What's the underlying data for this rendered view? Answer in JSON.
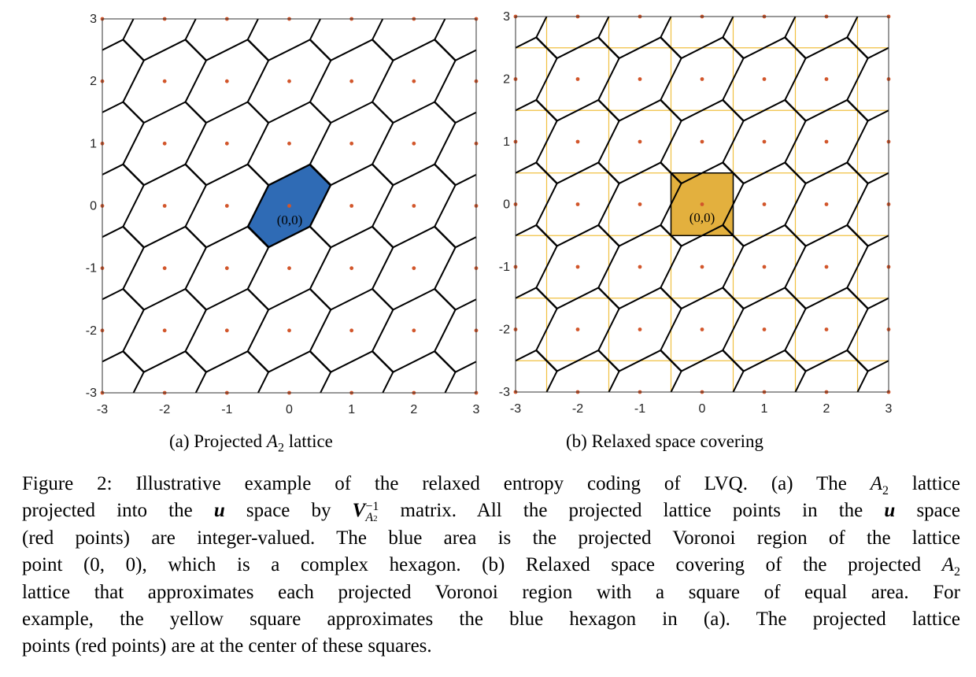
{
  "plot_a": {
    "origin_label": "(0,0)",
    "x_ticks": [
      "-3",
      "-2",
      "-1",
      "0",
      "1",
      "2",
      "3"
    ],
    "y_ticks": [
      "3",
      "2",
      "1",
      "0",
      "-1",
      "-2",
      "-3"
    ],
    "region_color": "#2f6bb5",
    "point_color": "#d2562b"
  },
  "plot_b": {
    "origin_label": "(0,0)",
    "x_ticks": [
      "-3",
      "-2",
      "-1",
      "0",
      "1",
      "2",
      "3"
    ],
    "y_ticks": [
      "3",
      "2",
      "1",
      "0",
      "-1",
      "-2",
      "-3"
    ],
    "square_color": "#e3b03e",
    "grid_color": "#f0c040",
    "point_color": "#d2562b"
  },
  "chart_data": [
    {
      "type": "scatter",
      "title": "",
      "xlabel": "",
      "ylabel": "",
      "xlim": [
        -3,
        3
      ],
      "ylim": [
        -3,
        3
      ],
      "points_description": "integer lattice points",
      "highlighted_region": "projected Voronoi hexagon of (0,0)"
    },
    {
      "type": "scatter",
      "title": "",
      "xlabel": "",
      "ylabel": "",
      "xlim": [
        -3,
        3
      ],
      "ylim": [
        -3,
        3
      ],
      "highlighted_region": "unit square centered at (0,0)"
    }
  ],
  "captions": {
    "a_prefix": "(a) Projected ",
    "a_lattice": "A",
    "a_sub": "2",
    "a_suffix": " lattice",
    "b": "(b) Relaxed space covering"
  },
  "figure_caption": {
    "l1_a": "Figure 2: Illustrative example of the relaxed entropy coding of LVQ. (a) The ",
    "l1_A": "A",
    "l1_sub": "2",
    "l1_b": " lattice",
    "l2_a": "projected into the ",
    "l2_u": "u",
    "l2_b": " space by ",
    "l2_V": "V",
    "l2_sup": "−1",
    "l2_subA": "A",
    "l2_sub2": "2",
    "l2_c": " matrix. All the projected lattice points in the ",
    "l2_u2": "u",
    "l2_d": " space",
    "l3": "(red points) are integer-valued. The blue area is the projected Voronoi region of the lattice",
    "l4_a": "point (0, 0), which is a complex hexagon. (b) Relaxed space covering of the projected ",
    "l4_A": "A",
    "l4_sub": "2",
    "l5": "lattice that approximates each projected Voronoi region with a square of equal area. For",
    "l6": "example, the yellow square approximates the blue hexagon in (a). The projected lattice",
    "l7": "points (red points) are at the center of these squares."
  }
}
